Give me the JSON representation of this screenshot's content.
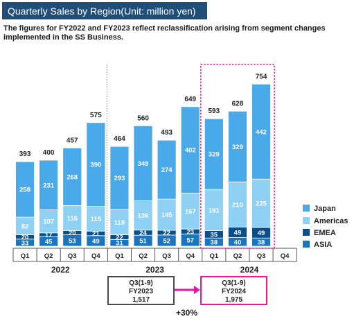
{
  "header": {
    "title": "Quarterly Sales by Region(Unit: million yen)",
    "note": "The figures for FY2022 and FY2023 reflect reclassification arising from segment changes implemented in the SS Business."
  },
  "colors": {
    "title_bg": "#1f4e79",
    "japan": "#4aa9e9",
    "americas": "#8fd0f5",
    "emea": "#0b4f8a",
    "asia": "#1a74c0",
    "highlight": "#e9169e",
    "compare_box": "#4a4a4a"
  },
  "chart_data": {
    "type": "bar",
    "stacked": true,
    "categories": [
      "Q1",
      "Q2",
      "Q3",
      "Q4",
      "Q1",
      "Q2",
      "Q3",
      "Q4",
      "Q1",
      "Q2",
      "Q3",
      "Q4"
    ],
    "groups": [
      {
        "label": "2022",
        "quarters": [
          "Q1",
          "Q2",
          "Q3",
          "Q4"
        ]
      },
      {
        "label": "2023",
        "quarters": [
          "Q1",
          "Q2",
          "Q3",
          "Q4"
        ]
      },
      {
        "label": "2024",
        "quarters": [
          "Q1",
          "Q2",
          "Q3",
          "Q4"
        ]
      }
    ],
    "series": [
      {
        "name": "ASIA",
        "values": [
          33,
          45,
          53,
          49,
          31,
          51,
          52,
          57,
          38,
          40,
          38,
          null
        ]
      },
      {
        "name": "EMEA",
        "values": [
          20,
          17,
          20,
          21,
          22,
          24,
          22,
          23,
          35,
          49,
          49,
          null
        ]
      },
      {
        "name": "Americas",
        "values": [
          82,
          107,
          116,
          115,
          118,
          136,
          145,
          167,
          191,
          210,
          225,
          null
        ]
      },
      {
        "name": "Japan",
        "values": [
          258,
          231,
          268,
          390,
          293,
          349,
          274,
          402,
          329,
          329,
          442,
          null
        ]
      }
    ],
    "totals": [
      393,
      400,
      457,
      575,
      464,
      560,
      493,
      649,
      593,
      628,
      754,
      null
    ],
    "legend": [
      "Japan",
      "Americas",
      "EMEA",
      "ASIA"
    ],
    "legend_position": "right",
    "grid": false,
    "ylim": [
      0,
      800
    ]
  },
  "comparison": {
    "left": {
      "period": "Q3(1-9)",
      "fiscal_year": "FY2023",
      "value": "1,517"
    },
    "right": {
      "period": "Q3(1-9)",
      "fiscal_year": "FY2024",
      "value": "1,975"
    },
    "growth": "+30%"
  }
}
